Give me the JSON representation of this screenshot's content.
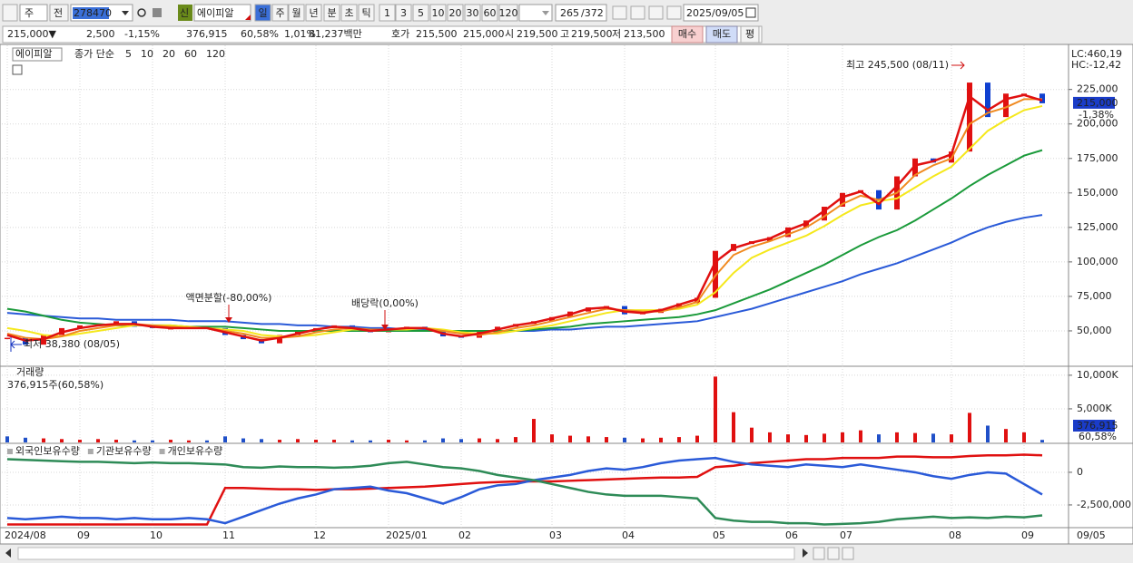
{
  "toolbar": {
    "market": "주",
    "prev": "전",
    "code": "278470",
    "badge": "신",
    "name": "에이피알",
    "periods": [
      "일",
      "주",
      "월",
      "년",
      "분",
      "초",
      "틱"
    ],
    "intervals": [
      "1",
      "3",
      "5",
      "10",
      "20",
      "30",
      "60",
      "120"
    ],
    "count": "265",
    "total": "/372",
    "date": "2025/09/05"
  },
  "info_bar": {
    "price": "215,000▼",
    "change": "2,500",
    "change_rate": "-1,15%",
    "volume": "376,915",
    "volume_ratio": "60,58%",
    "turnover_rate": "1,01%",
    "amount": "81,237백만",
    "quote_label": "호가",
    "ask": "215,500",
    "bid": "215,000",
    "open_label": "시",
    "open": "219,500",
    "high_label": "고",
    "high": "219,500",
    "low_label": "저",
    "low": "213,500",
    "buy": "매수",
    "sell": "매도",
    "avg": "평"
  },
  "x_axis": {
    "categories": [
      "2024/08",
      null,
      null,
      null,
      "09",
      null,
      null,
      null,
      "10",
      null,
      null,
      null,
      "11",
      null,
      null,
      null,
      null,
      "12",
      null,
      null,
      null,
      "2025/01",
      null,
      null,
      null,
      "02",
      null,
      null,
      null,
      null,
      "03",
      null,
      null,
      null,
      "04",
      null,
      null,
      null,
      null,
      "05",
      null,
      null,
      null,
      "06",
      null,
      null,
      "07",
      null,
      null,
      null,
      null,
      null,
      "08",
      null,
      null,
      null,
      "09",
      null
    ],
    "end_label": "09/05"
  },
  "chart_data": [
    {
      "type": "candlestick",
      "title": "에이피알",
      "legend_prefix": "종가 단순",
      "close": [
        45000,
        40000,
        47000,
        52000,
        54000,
        55000,
        57000,
        53000,
        52000,
        52000,
        53000,
        52000,
        47000,
        44000,
        41000,
        47000,
        50000,
        52000,
        54000,
        51000,
        49000,
        52000,
        53000,
        51000,
        46000,
        45000,
        50000,
        53000,
        55000,
        57000,
        60000,
        64000,
        67000,
        68000,
        62000,
        63000,
        66000,
        70000,
        74000,
        108000,
        113000,
        115000,
        118000,
        125000,
        130000,
        140000,
        150000,
        152000,
        138000,
        162000,
        175000,
        172000,
        180000,
        230000,
        205000,
        222000,
        222000,
        215000
      ],
      "up_color": "#e01010",
      "down_color": "#1040d0",
      "series": [
        {
          "name": "5",
          "color": "#e01010",
          "values": [
            47000,
            43000,
            44000,
            49000,
            52000,
            54000,
            55000,
            55000,
            53000,
            52000,
            52000,
            52000,
            49000,
            46000,
            43000,
            45000,
            48000,
            51000,
            53000,
            52000,
            50000,
            51000,
            52000,
            52000,
            48000,
            46000,
            48000,
            51000,
            54000,
            56000,
            59000,
            62000,
            66000,
            67000,
            64000,
            63000,
            65000,
            69000,
            73000,
            100000,
            110000,
            114000,
            117000,
            123000,
            128000,
            137000,
            147000,
            151000,
            142000,
            155000,
            170000,
            173000,
            178000,
            220000,
            210000,
            218000,
            221000,
            217000
          ]
        },
        {
          "name": "10",
          "color": "#f08a20",
          "values": [
            48000,
            45000,
            44000,
            46000,
            50000,
            52000,
            54000,
            55000,
            54000,
            53000,
            52000,
            52000,
            50000,
            48000,
            45000,
            45000,
            46000,
            49000,
            51000,
            52000,
            51000,
            51000,
            52000,
            52000,
            50000,
            48000,
            47000,
            49000,
            52000,
            54000,
            57000,
            60000,
            63000,
            66000,
            65000,
            64000,
            64000,
            67000,
            71000,
            90000,
            105000,
            111000,
            115000,
            120000,
            125000,
            133000,
            142000,
            148000,
            145000,
            150000,
            163000,
            170000,
            175000,
            200000,
            208000,
            212000,
            218000,
            218000
          ]
        },
        {
          "name": "20",
          "color": "#f5e81c",
          "values": [
            52000,
            50000,
            47000,
            46000,
            48000,
            50000,
            52000,
            54000,
            54000,
            54000,
            53000,
            52000,
            51000,
            50000,
            47000,
            46000,
            46000,
            47000,
            49000,
            51000,
            51000,
            51000,
            51000,
            52000,
            51000,
            49000,
            48000,
            48000,
            50000,
            52000,
            54000,
            57000,
            60000,
            63000,
            65000,
            65000,
            65000,
            66000,
            69000,
            78000,
            92000,
            103000,
            109000,
            114000,
            119000,
            126000,
            134000,
            141000,
            144000,
            146000,
            154000,
            162000,
            169000,
            182000,
            195000,
            203000,
            210000,
            213000
          ]
        },
        {
          "name": "60",
          "color": "#1a9a3a",
          "values": [
            66000,
            64000,
            61000,
            58000,
            56000,
            55000,
            54000,
            54000,
            54000,
            54000,
            53000,
            53000,
            53000,
            52000,
            51000,
            50000,
            50000,
            50000,
            50000,
            50000,
            50000,
            50000,
            50000,
            50000,
            50000,
            50000,
            50000,
            50000,
            50000,
            51000,
            52000,
            53000,
            55000,
            56000,
            57000,
            58000,
            59000,
            60000,
            62000,
            65000,
            70000,
            75000,
            80000,
            86000,
            92000,
            98000,
            105000,
            112000,
            118000,
            123000,
            130000,
            138000,
            146000,
            155000,
            163000,
            170000,
            177000,
            181000
          ]
        },
        {
          "name": "120",
          "color": "#2a5ad8",
          "values": [
            63000,
            62000,
            61000,
            60000,
            59000,
            59000,
            58000,
            58000,
            58000,
            58000,
            57000,
            57000,
            57000,
            56000,
            55000,
            55000,
            54000,
            54000,
            53000,
            53000,
            52000,
            52000,
            51000,
            51000,
            50000,
            50000,
            50000,
            50000,
            50000,
            50000,
            51000,
            51000,
            52000,
            53000,
            53000,
            54000,
            55000,
            56000,
            57000,
            60000,
            63000,
            66000,
            70000,
            74000,
            78000,
            82000,
            86000,
            91000,
            95000,
            99000,
            104000,
            109000,
            114000,
            120000,
            125000,
            129000,
            132000,
            134000
          ]
        }
      ],
      "ylim": [
        25000,
        257000
      ],
      "yticks": [
        {
          "value": 50000,
          "label": "50,000"
        },
        {
          "value": 75000,
          "label": "75,000"
        },
        {
          "value": 100000,
          "label": "100,000"
        },
        {
          "value": 125000,
          "label": "125,000"
        },
        {
          "value": 150000,
          "label": "150,000"
        },
        {
          "value": 175000,
          "label": "175,000"
        },
        {
          "value": 200000,
          "label": "200,000"
        },
        {
          "value": 225000,
          "label": "225,000"
        }
      ],
      "grid": true,
      "last_label": {
        "value": 215000,
        "label": "215,000"
      },
      "last_change": "-1,38%",
      "lc": "LC:460,19",
      "hc": "HC:-12,42",
      "annotations": [
        "최고 245,500 (08/11)",
        "최저 38,380 (08/05)",
        "액면분할(-80,00%)",
        "배당락(0,00%)"
      ]
    },
    {
      "type": "bar",
      "title": "거래량",
      "subtitle": "376,915주(60,58%)",
      "values": [
        900,
        700,
        600,
        500,
        400,
        500,
        400,
        300,
        300,
        400,
        300,
        300,
        900,
        600,
        500,
        400,
        500,
        400,
        400,
        300,
        300,
        400,
        300,
        300,
        600,
        500,
        600,
        500,
        800,
        3500,
        1200,
        1000,
        900,
        800,
        700,
        600,
        700,
        800,
        1000,
        9800,
        4500,
        2200,
        1500,
        1200,
        1100,
        1300,
        1500,
        1800,
        1200,
        1500,
        1400,
        1300,
        1200,
        4400,
        2500,
        2000,
        1500,
        376.915
      ],
      "color": "#2050c8",
      "up_color": "#e01010",
      "ylim": [
        0,
        11200
      ],
      "yticks": [
        {
          "value": 10000,
          "label": "10,000K"
        },
        {
          "value": 5000,
          "label": "5,000K"
        }
      ],
      "grid": true,
      "last_label": "376,915",
      "last_ratio": "60,58%"
    },
    {
      "type": "line",
      "series": [
        {
          "name": "외국인보유수량",
          "color": "#e01010",
          "values": [
            -4000000,
            -4000000,
            -4000000,
            -4000000,
            -4000000,
            -4000000,
            -4000000,
            -4000000,
            -4000000,
            -4000000,
            -4000000,
            -4000000,
            -1200000,
            -1200000,
            -1250000,
            -1300000,
            -1300000,
            -1350000,
            -1300000,
            -1300000,
            -1250000,
            -1200000,
            -1150000,
            -1100000,
            -1000000,
            -900000,
            -800000,
            -750000,
            -700000,
            -700000,
            -700000,
            -650000,
            -600000,
            -550000,
            -500000,
            -450000,
            -400000,
            -400000,
            -350000,
            400000,
            500000,
            700000,
            800000,
            900000,
            1000000,
            1000000,
            1100000,
            1100000,
            1100000,
            1200000,
            1200000,
            1150000,
            1150000,
            1250000,
            1300000,
            1300000,
            1350000,
            1300000
          ]
        },
        {
          "name": "기관보유수량",
          "color": "#2a5ad8",
          "values": [
            -3500000,
            -3600000,
            -3500000,
            -3400000,
            -3500000,
            -3500000,
            -3600000,
            -3500000,
            -3600000,
            -3600000,
            -3500000,
            -3600000,
            -3900000,
            -3400000,
            -2900000,
            -2400000,
            -2000000,
            -1700000,
            -1300000,
            -1200000,
            -1100000,
            -1400000,
            -1600000,
            -2000000,
            -2400000,
            -1900000,
            -1300000,
            -1000000,
            -900000,
            -600000,
            -400000,
            -200000,
            100000,
            300000,
            200000,
            400000,
            700000,
            900000,
            1000000,
            1100000,
            800000,
            600000,
            500000,
            400000,
            600000,
            500000,
            400000,
            600000,
            400000,
            200000,
            0,
            -300000,
            -500000,
            -200000,
            0,
            -100000,
            -900000,
            -1700000
          ]
        },
        {
          "name": "개인보유수량",
          "color": "#2e8b57",
          "values": [
            1000000,
            950000,
            900000,
            850000,
            800000,
            800000,
            750000,
            700000,
            750000,
            700000,
            700000,
            650000,
            600000,
            400000,
            350000,
            450000,
            400000,
            400000,
            350000,
            400000,
            500000,
            700000,
            800000,
            600000,
            400000,
            300000,
            100000,
            -200000,
            -400000,
            -600000,
            -900000,
            -1200000,
            -1500000,
            -1700000,
            -1800000,
            -1800000,
            -1800000,
            -1900000,
            -2000000,
            -3500000,
            -3700000,
            -3800000,
            -3800000,
            -3900000,
            -3900000,
            -4000000,
            -3950000,
            -3900000,
            -3800000,
            -3600000,
            -3500000,
            -3400000,
            -3500000,
            -3450000,
            -3500000,
            -3400000,
            -3450000,
            -3300000
          ]
        }
      ],
      "ylim": [
        -4240000,
        2150000
      ],
      "yticks": [
        0,
        {
          "value": -2500000,
          "label": "-2,500,000"
        }
      ],
      "grid": true
    }
  ]
}
